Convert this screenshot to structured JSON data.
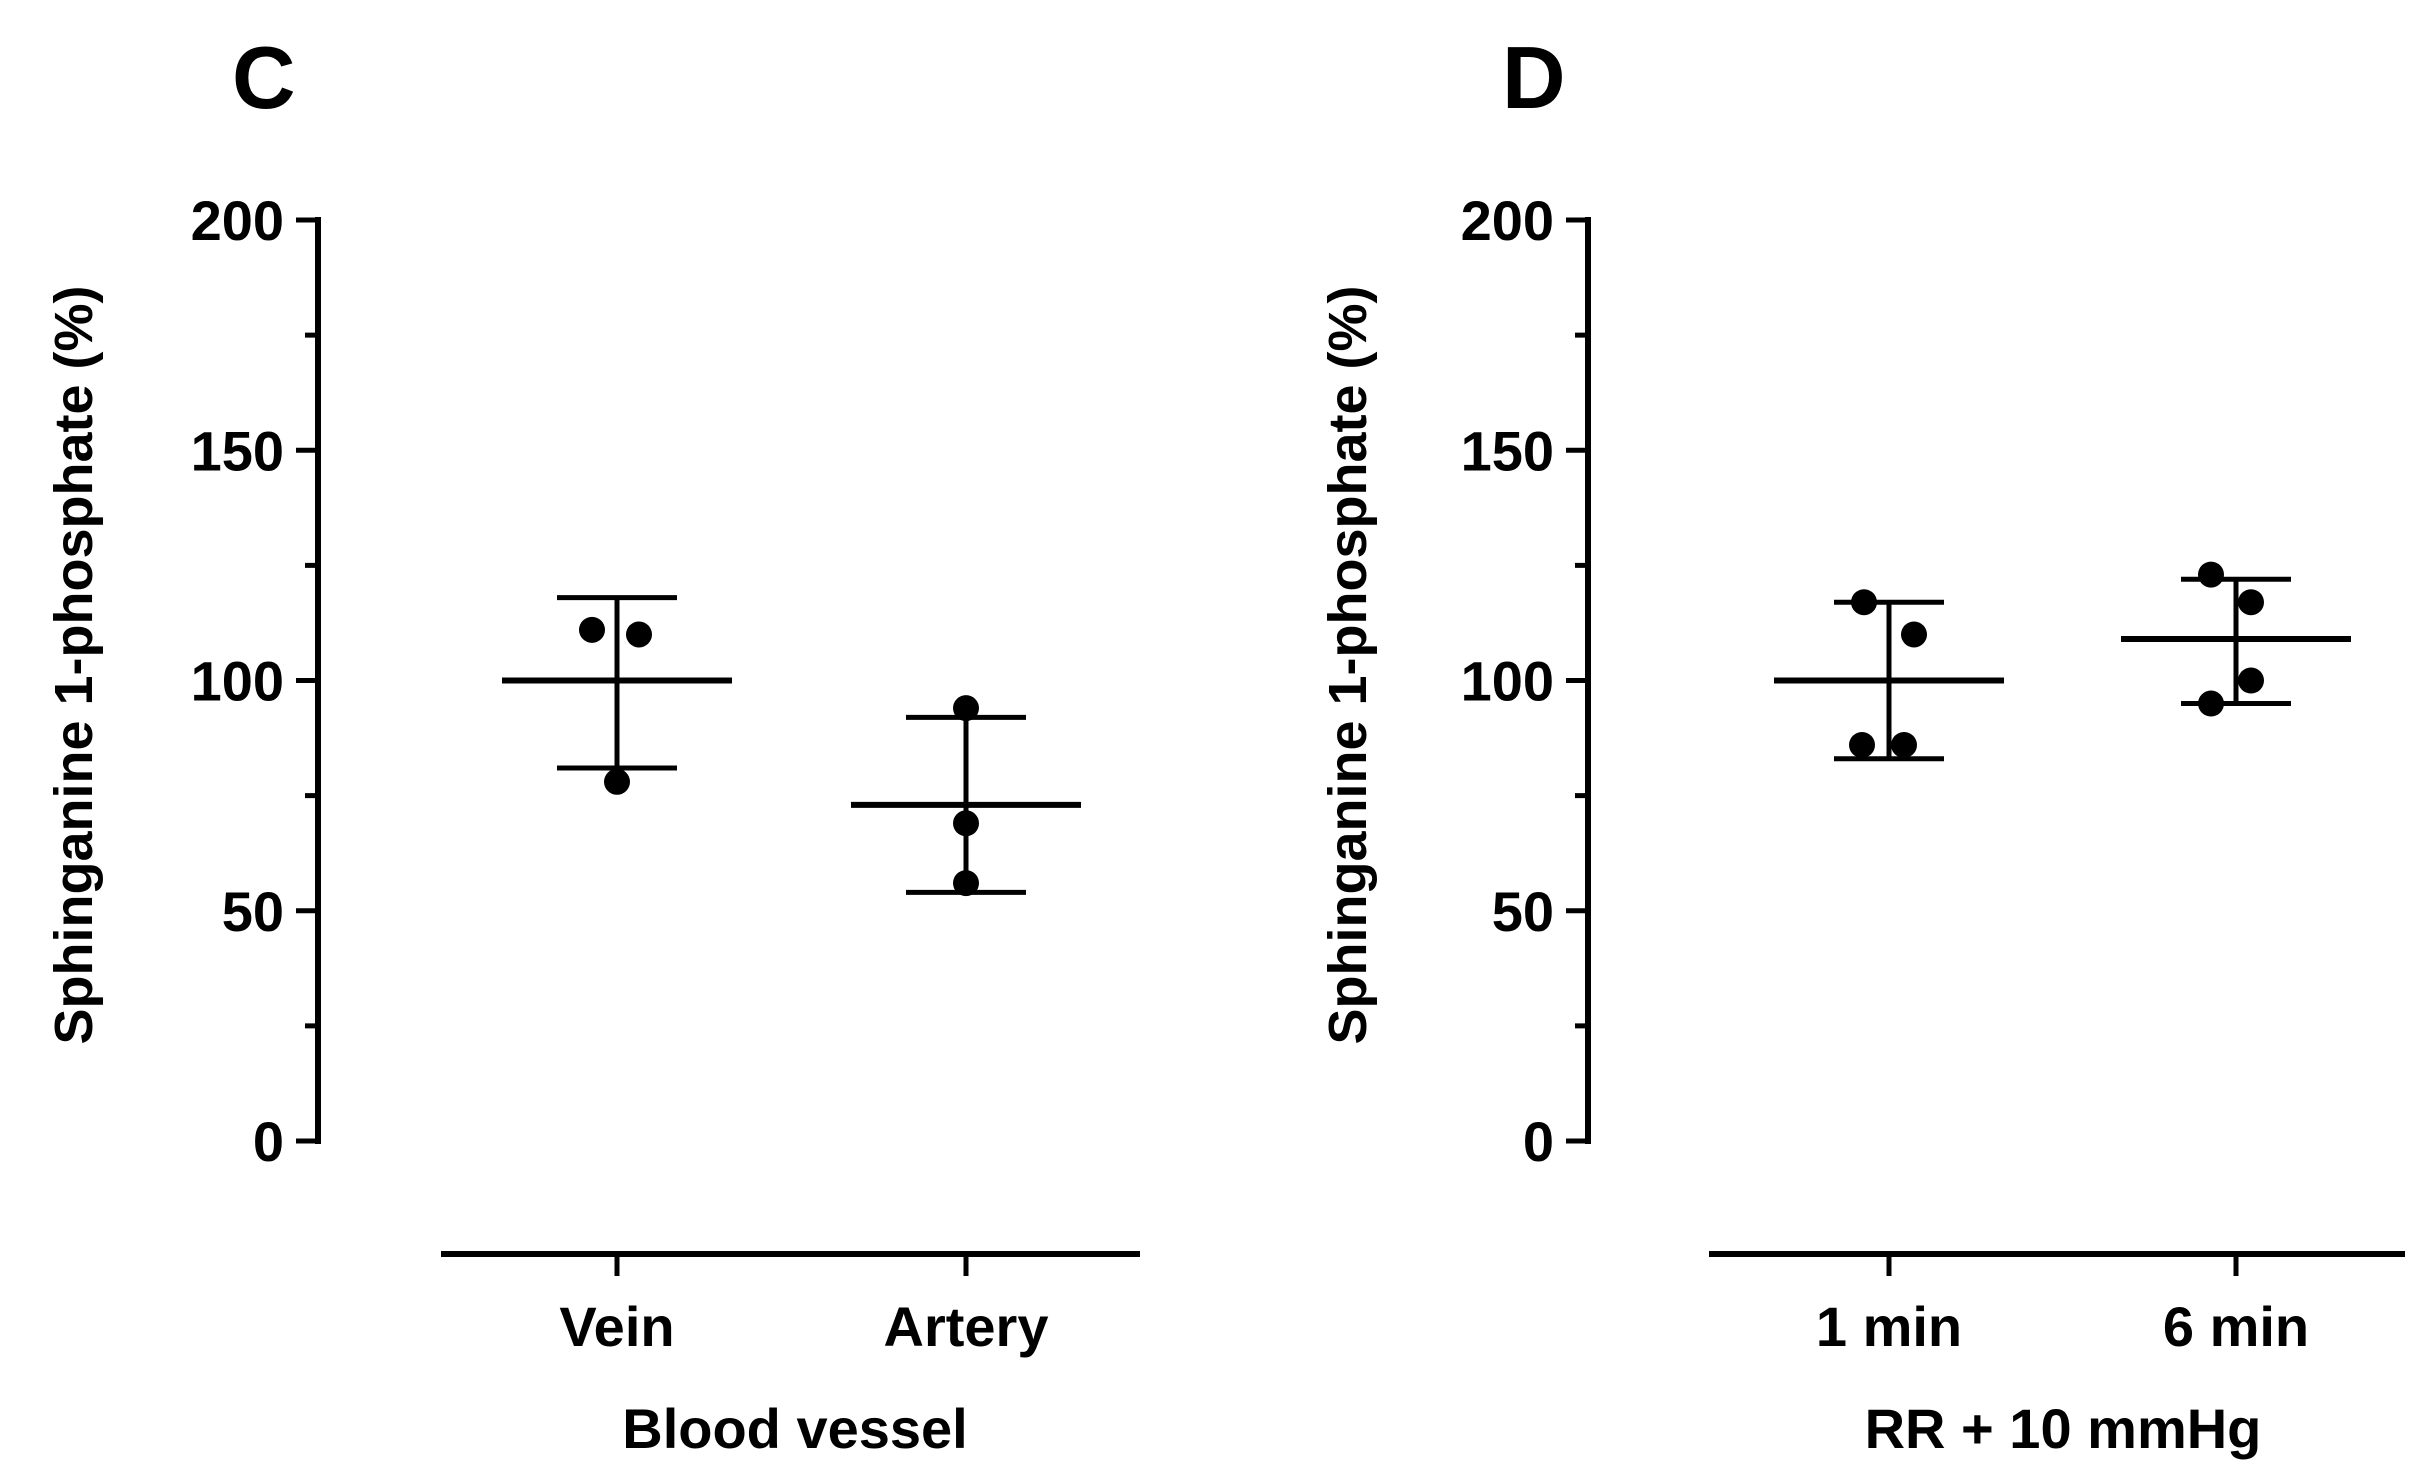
{
  "chart_data": [
    {
      "type": "scatter",
      "panel_label": "C",
      "ylabel": "Sphinganine 1-phosphate (%)",
      "xlabel": "Blood vessel",
      "ylim": [
        0,
        200
      ],
      "yticks": [
        0,
        50,
        100,
        150,
        200
      ],
      "ytick_labels": [
        "0",
        "50",
        "100",
        "150",
        "200"
      ],
      "categories": [
        "Vein",
        "Artery"
      ],
      "groups": [
        {
          "name": "Vein",
          "points": [
            111,
            110,
            78
          ],
          "mean": 100,
          "sd_upper": 118,
          "sd_lower": 81
        },
        {
          "name": "Artery",
          "points": [
            94,
            69,
            56
          ],
          "mean": 73,
          "sd_upper": 92,
          "sd_lower": 54
        }
      ]
    },
    {
      "type": "scatter",
      "panel_label": "D",
      "ylabel": "Sphinganine 1-phosphate (%)",
      "xlabel": "RR + 10 mmHg",
      "ylim": [
        0,
        200
      ],
      "yticks": [
        0,
        50,
        100,
        150,
        200
      ],
      "ytick_labels": [
        "0",
        "50",
        "100",
        "150",
        "200"
      ],
      "categories": [
        "1 min",
        "6 min"
      ],
      "groups": [
        {
          "name": "1 min",
          "points": [
            117,
            110,
            86,
            86
          ],
          "mean": 100,
          "sd_upper": 117,
          "sd_lower": 83
        },
        {
          "name": "6 min",
          "points": [
            123,
            117,
            100,
            95
          ],
          "mean": 109,
          "sd_upper": 122,
          "sd_lower": 95
        }
      ]
    }
  ]
}
